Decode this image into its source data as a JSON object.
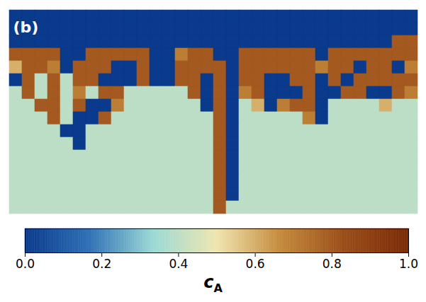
{
  "chart_data": {
    "type": "heatmap",
    "panel_label": "(b)",
    "tick_labels": false,
    "colorbar_label": "c",
    "colorbar_label_subscript": "A",
    "color_range": [
      0,
      1
    ],
    "color_ticks": [
      {
        "value": 0,
        "label": "0.0"
      },
      0.2,
      0.4,
      0.6,
      0.8,
      {
        "value": 1,
        "label": "1.0"
      }
    ],
    "cells": [
      [
        0,
        0,
        0,
        0,
        0,
        0,
        0,
        0,
        0,
        0,
        0,
        0,
        0,
        0,
        0,
        0,
        0,
        0,
        0,
        0,
        0,
        0,
        0,
        0,
        0,
        0,
        0,
        0,
        0,
        0,
        0,
        0
      ],
      [
        0,
        0,
        0,
        0,
        0,
        0,
        0,
        0,
        0,
        0,
        0,
        0,
        0,
        0,
        0,
        0,
        0,
        0,
        0,
        0,
        0,
        0,
        0,
        0,
        0,
        0,
        0,
        0,
        0,
        0,
        0,
        0
      ],
      [
        0,
        0,
        0,
        0,
        0,
        0,
        0,
        0,
        0,
        0,
        0,
        0,
        0,
        0,
        0,
        0,
        0,
        0,
        0,
        0,
        0,
        0,
        0,
        0,
        0,
        0,
        0,
        0,
        0,
        0,
        0.8,
        0.8
      ],
      [
        0.8,
        0.8,
        0.8,
        0.8,
        0,
        0,
        0.8,
        0.8,
        0.8,
        0.8,
        0.8,
        0,
        0,
        0.7,
        0.8,
        0.8,
        0,
        0,
        0.8,
        0.8,
        0.8,
        0.8,
        0.8,
        0.8,
        0,
        0.8,
        0.8,
        0.8,
        0.8,
        0.8,
        0.8,
        0.8
      ],
      [
        0.6,
        0.8,
        0.8,
        0.7,
        0,
        0.8,
        0.8,
        0.8,
        0,
        0,
        0.8,
        0,
        0,
        0.8,
        0.8,
        0.8,
        0.8,
        0,
        0.8,
        0.8,
        0.8,
        0.8,
        0.8,
        0.8,
        0.7,
        0.8,
        0.8,
        0,
        0.8,
        0.8,
        0,
        0.7
      ],
      [
        0,
        0.8,
        0.4,
        0.8,
        0.4,
        0.8,
        0.8,
        0,
        0,
        0,
        0.8,
        0,
        0,
        0.8,
        0.8,
        0,
        0.8,
        0,
        0.8,
        0.8,
        0,
        0,
        0.8,
        0.8,
        0,
        0.8,
        0,
        0.8,
        0.8,
        0.8,
        0.8,
        0.8
      ],
      [
        0.4,
        0.8,
        0.4,
        0.8,
        0.4,
        0.7,
        0.4,
        0.8,
        0.8,
        0.4,
        0.4,
        0.4,
        0.4,
        0.4,
        0.8,
        0,
        0.8,
        0,
        0.7,
        0.8,
        0,
        0,
        0,
        0.8,
        0,
        0,
        0.8,
        0.8,
        0,
        0,
        0.8,
        0.7
      ],
      [
        0.4,
        0.4,
        0.8,
        0.8,
        0.4,
        0.8,
        0,
        0,
        0.7,
        0.4,
        0.4,
        0.4,
        0.4,
        0.4,
        0.4,
        0,
        0.8,
        0,
        0.4,
        0.6,
        0,
        0.7,
        0.8,
        0.8,
        0,
        0.4,
        0.4,
        0.4,
        0.4,
        0.6,
        0.4,
        0.4
      ],
      [
        0.4,
        0.4,
        0.4,
        0.8,
        0.4,
        0,
        0,
        0.8,
        0.4,
        0.4,
        0.4,
        0.4,
        0.4,
        0.4,
        0.4,
        0.4,
        0.8,
        0,
        0.4,
        0.4,
        0.4,
        0.4,
        0.4,
        0.7,
        0,
        0.4,
        0.4,
        0.4,
        0.4,
        0.4,
        0.4,
        0.4
      ],
      [
        0.4,
        0.4,
        0.4,
        0.4,
        0,
        0,
        0.4,
        0.4,
        0.4,
        0.4,
        0.4,
        0.4,
        0.4,
        0.4,
        0.4,
        0.4,
        0.8,
        0,
        0.4,
        0.4,
        0.4,
        0.4,
        0.4,
        0.4,
        0.4,
        0.4,
        0.4,
        0.4,
        0.4,
        0.4,
        0.4,
        0.4
      ],
      [
        0.4,
        0.4,
        0.4,
        0.4,
        0.4,
        0,
        0.4,
        0.4,
        0.4,
        0.4,
        0.4,
        0.4,
        0.4,
        0.4,
        0.4,
        0.4,
        0.8,
        0,
        0.4,
        0.4,
        0.4,
        0.4,
        0.4,
        0.4,
        0.4,
        0.4,
        0.4,
        0.4,
        0.4,
        0.4,
        0.4,
        0.4
      ],
      [
        0.4,
        0.4,
        0.4,
        0.4,
        0.4,
        0.4,
        0.4,
        0.4,
        0.4,
        0.4,
        0.4,
        0.4,
        0.4,
        0.4,
        0.4,
        0.4,
        0.8,
        0,
        0.4,
        0.4,
        0.4,
        0.4,
        0.4,
        0.4,
        0.4,
        0.4,
        0.4,
        0.4,
        0.4,
        0.4,
        0.4,
        0.4
      ],
      [
        0.4,
        0.4,
        0.4,
        0.4,
        0.4,
        0.4,
        0.4,
        0.4,
        0.4,
        0.4,
        0.4,
        0.4,
        0.4,
        0.4,
        0.4,
        0.4,
        0.8,
        0,
        0.4,
        0.4,
        0.4,
        0.4,
        0.4,
        0.4,
        0.4,
        0.4,
        0.4,
        0.4,
        0.4,
        0.4,
        0.4,
        0.4
      ],
      [
        0.4,
        0.4,
        0.4,
        0.4,
        0.4,
        0.4,
        0.4,
        0.4,
        0.4,
        0.4,
        0.4,
        0.4,
        0.4,
        0.4,
        0.4,
        0.4,
        0.8,
        0,
        0.4,
        0.4,
        0.4,
        0.4,
        0.4,
        0.4,
        0.4,
        0.4,
        0.4,
        0.4,
        0.4,
        0.4,
        0.4,
        0.4
      ],
      [
        0.4,
        0.4,
        0.4,
        0.4,
        0.4,
        0.4,
        0.4,
        0.4,
        0.4,
        0.4,
        0.4,
        0.4,
        0.4,
        0.4,
        0.4,
        0.4,
        0.8,
        0,
        0.4,
        0.4,
        0.4,
        0.4,
        0.4,
        0.4,
        0.4,
        0.4,
        0.4,
        0.4,
        0.4,
        0.4,
        0.4,
        0.4
      ],
      [
        0.4,
        0.4,
        0.4,
        0.4,
        0.4,
        0.4,
        0.4,
        0.4,
        0.4,
        0.4,
        0.4,
        0.4,
        0.4,
        0.4,
        0.4,
        0.4,
        0.8,
        0.4,
        0.4,
        0.4,
        0.4,
        0.4,
        0.4,
        0.4,
        0.4,
        0.4,
        0.4,
        0.4,
        0.4,
        0.4,
        0.4,
        0.4
      ]
    ]
  }
}
